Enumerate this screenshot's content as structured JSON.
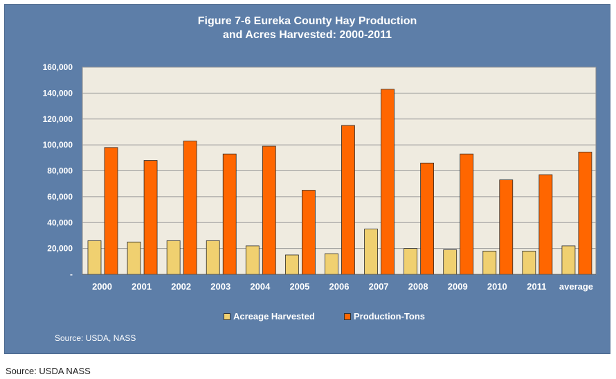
{
  "chart_data": {
    "type": "bar",
    "title": [
      "Figure 7-6 Eureka County Hay Production",
      "and Acres Harvested: 2000-2011"
    ],
    "categories": [
      "2000",
      "2001",
      "2002",
      "2003",
      "2004",
      "2005",
      "2006",
      "2007",
      "2008",
      "2009",
      "2010",
      "2011",
      "average"
    ],
    "series": [
      {
        "name": "Acreage Harvested",
        "color": "#f0d070",
        "values": [
          26000,
          25000,
          26000,
          26000,
          22000,
          15000,
          16000,
          35000,
          20000,
          19000,
          18000,
          18000,
          22000
        ]
      },
      {
        "name": "Production-Tons",
        "color": "#ff6600",
        "values": [
          98000,
          88000,
          103000,
          93000,
          99000,
          65000,
          115000,
          143000,
          86000,
          93000,
          73000,
          77000,
          94500
        ]
      }
    ],
    "ylim": [
      0,
      160000
    ],
    "yticks": [
      0,
      20000,
      40000,
      60000,
      80000,
      100000,
      120000,
      140000,
      160000
    ],
    "ytick_labels": [
      "-",
      "20,000",
      "40,000",
      "60,000",
      "80,000",
      "100,000",
      "120,000",
      "140,000",
      "160,000"
    ],
    "grid": true,
    "legend_position": "bottom",
    "plot_background": "#efebe0",
    "panel_background": "#5d7ea8"
  },
  "inner_source": "Source: USDA, NASS",
  "outer_source": "Source: USDA NASS"
}
